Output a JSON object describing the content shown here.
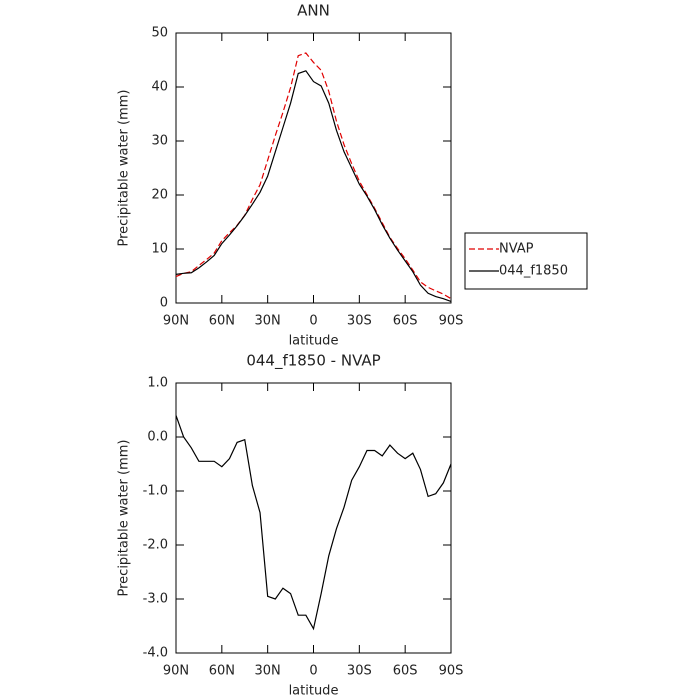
{
  "chart_data": [
    {
      "type": "line",
      "title": "ANN",
      "x_label": "latitude",
      "y_label": "Precipitable water (mm)",
      "x": [
        90,
        85,
        80,
        75,
        70,
        65,
        60,
        55,
        50,
        45,
        40,
        35,
        30,
        25,
        20,
        15,
        10,
        5,
        0,
        -5,
        -10,
        -15,
        -20,
        -25,
        -30,
        -35,
        -40,
        -45,
        -50,
        -55,
        -60,
        -65,
        -70,
        -75,
        -80,
        -85,
        -90
      ],
      "series": [
        {
          "name": "NVAP",
          "color": "#e00000",
          "dash": true,
          "values": [
            4.9,
            5.5,
            5.8,
            6.95,
            8.05,
            9.25,
            11.55,
            13.0,
            14.4,
            16.25,
            19.2,
            21.9,
            26.45,
            31.0,
            35.3,
            39.9,
            45.8,
            46.3,
            44.55,
            43.1,
            39.2,
            33.7,
            29.3,
            25.8,
            22.55,
            20.05,
            17.55,
            14.85,
            12.15,
            10.1,
            8.2,
            6.1,
            3.9,
            2.9,
            2.25,
            1.65,
            0.8
          ]
        },
        {
          "name": "044_f1850",
          "color": "#000000",
          "dash": false,
          "values": [
            5.3,
            5.5,
            5.6,
            6.5,
            7.6,
            8.8,
            11,
            12.6,
            14.3,
            16.2,
            18.3,
            20.5,
            23.5,
            28,
            32.5,
            37,
            42.5,
            43,
            41,
            40.2,
            37,
            32,
            28,
            25,
            22,
            19.8,
            17.3,
            14.5,
            12,
            9.8,
            7.8,
            5.8,
            3.3,
            1.8,
            1.2,
            0.8,
            0.3
          ]
        }
      ],
      "xlim": [
        90,
        -90
      ],
      "xticks": [
        {
          "value": 90,
          "label": "90N"
        },
        {
          "value": 60,
          "label": "60N"
        },
        {
          "value": 30,
          "label": "30N"
        },
        0,
        {
          "value": -30,
          "label": "30S"
        },
        {
          "value": -60,
          "label": "60S"
        },
        {
          "value": -90,
          "label": "90S"
        }
      ],
      "ylim": [
        0,
        50
      ],
      "yticks": [
        0,
        10,
        20,
        30,
        40,
        50
      ],
      "legend": "right"
    },
    {
      "type": "line",
      "title": "044_f1850 - NVAP",
      "x_label": "latitude",
      "y_label": "Precipitable water (mm)",
      "x": [
        90,
        85,
        80,
        75,
        70,
        65,
        60,
        55,
        50,
        45,
        40,
        35,
        30,
        25,
        20,
        15,
        10,
        5,
        0,
        -5,
        -10,
        -15,
        -20,
        -25,
        -30,
        -35,
        -40,
        -45,
        -50,
        -55,
        -60,
        -65,
        -70,
        -75,
        -80,
        -85,
        -90
      ],
      "values": [
        0.4,
        0,
        -0.2,
        -0.45,
        -0.45,
        -0.45,
        -0.55,
        -0.4,
        -0.1,
        -0.05,
        -0.9,
        -1.4,
        -2.95,
        -3.0,
        -2.8,
        -2.9,
        -3.3,
        -3.3,
        -3.55,
        -2.9,
        -2.2,
        -1.7,
        -1.3,
        -0.8,
        -0.55,
        -0.25,
        -0.25,
        -0.35,
        -0.15,
        -0.3,
        -0.4,
        -0.3,
        -0.6,
        -1.1,
        -1.05,
        -0.85,
        -0.5
      ],
      "color": "#000000",
      "xlim": [
        90,
        -90
      ],
      "xticks": [
        {
          "value": 90,
          "label": "90N"
        },
        {
          "value": 60,
          "label": "60N"
        },
        {
          "value": 30,
          "label": "30N"
        },
        0,
        {
          "value": -30,
          "label": "30S"
        },
        {
          "value": -60,
          "label": "60S"
        },
        {
          "value": -90,
          "label": "90S"
        }
      ],
      "ylim": [
        -4,
        1
      ],
      "yticks": [
        {
          "value": -4,
          "label": "-4.0"
        },
        {
          "value": -3,
          "label": "-3.0"
        },
        {
          "value": -2,
          "label": "-2.0"
        },
        {
          "value": -1,
          "label": "-1.0"
        },
        {
          "value": 0,
          "label": "0.0"
        },
        {
          "value": 1,
          "label": "1.0"
        }
      ]
    }
  ]
}
